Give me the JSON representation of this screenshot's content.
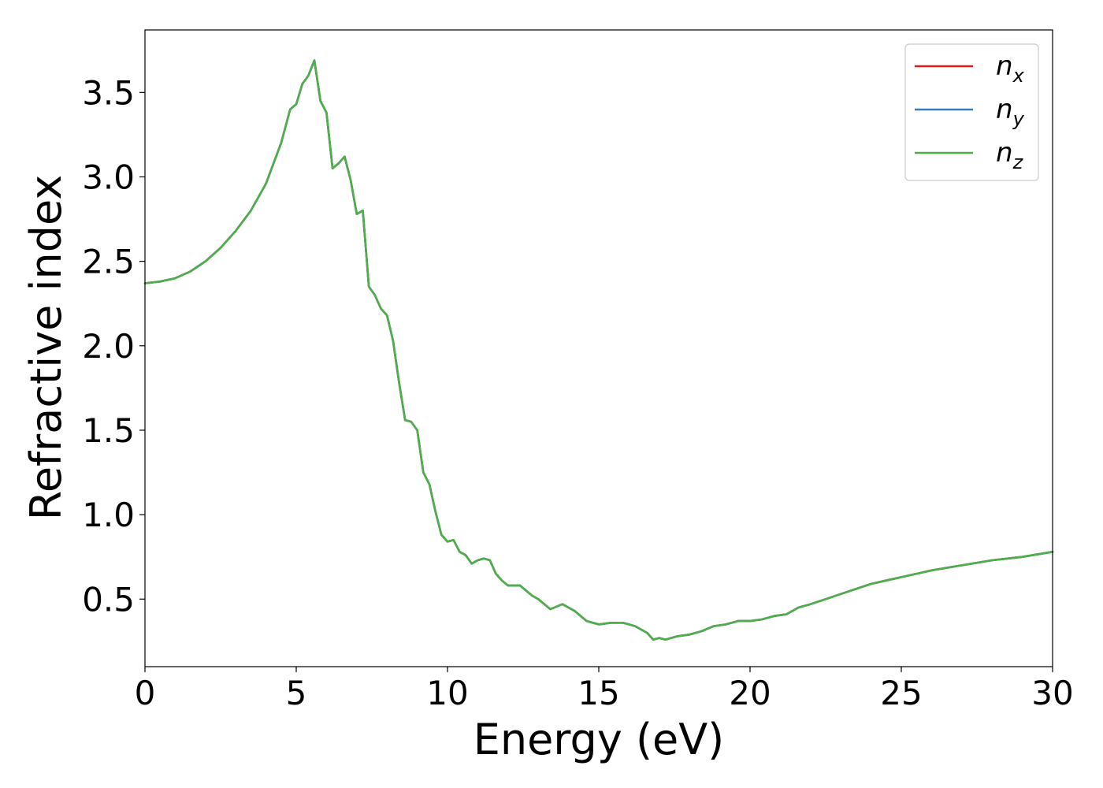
{
  "chart_data": {
    "type": "line",
    "xlabel": "Energy (eV)",
    "ylabel": "Refractive index",
    "xlim": [
      0,
      30
    ],
    "ylim": [
      0.1,
      3.87
    ],
    "x_ticks": [
      "0",
      "5",
      "10",
      "15",
      "20",
      "25",
      "30"
    ],
    "y_ticks": [
      "0.5",
      "1.0",
      "1.5",
      "2.0",
      "2.5",
      "3.0",
      "3.5"
    ],
    "grid": false,
    "legend_position": "top-right",
    "x": [
      0,
      0.5,
      1.0,
      1.5,
      2.0,
      2.5,
      3.0,
      3.5,
      4.0,
      4.5,
      4.8,
      5.0,
      5.2,
      5.4,
      5.6,
      5.8,
      6.0,
      6.2,
      6.4,
      6.6,
      6.8,
      7.0,
      7.2,
      7.4,
      7.6,
      7.8,
      8.0,
      8.2,
      8.4,
      8.6,
      8.8,
      9.0,
      9.2,
      9.4,
      9.6,
      9.8,
      10.0,
      10.2,
      10.4,
      10.6,
      10.8,
      11.0,
      11.2,
      11.4,
      11.6,
      11.8,
      12.0,
      12.4,
      12.8,
      13.0,
      13.4,
      13.8,
      14.2,
      14.6,
      15.0,
      15.4,
      15.8,
      16.2,
      16.6,
      16.8,
      17.0,
      17.2,
      17.6,
      18.0,
      18.4,
      18.8,
      19.2,
      19.6,
      20.0,
      20.4,
      20.8,
      21.2,
      21.6,
      22.0,
      22.5,
      23.0,
      23.5,
      24.0,
      24.5,
      25.0,
      25.5,
      26.0,
      27.0,
      28.0,
      29.0,
      30.0
    ],
    "series": [
      {
        "name": "n",
        "subscript": "x",
        "color": "#e41a1c",
        "y": [
          2.37,
          2.38,
          2.4,
          2.44,
          2.5,
          2.58,
          2.68,
          2.8,
          2.96,
          3.2,
          3.4,
          3.43,
          3.55,
          3.6,
          3.69,
          3.45,
          3.38,
          3.05,
          3.08,
          3.12,
          2.98,
          2.78,
          2.8,
          2.35,
          2.3,
          2.22,
          2.18,
          2.03,
          1.78,
          1.56,
          1.55,
          1.5,
          1.25,
          1.18,
          1.02,
          0.88,
          0.84,
          0.85,
          0.78,
          0.76,
          0.71,
          0.73,
          0.74,
          0.73,
          0.65,
          0.61,
          0.58,
          0.58,
          0.52,
          0.5,
          0.44,
          0.47,
          0.43,
          0.37,
          0.35,
          0.36,
          0.36,
          0.34,
          0.3,
          0.26,
          0.27,
          0.26,
          0.28,
          0.29,
          0.31,
          0.34,
          0.35,
          0.37,
          0.37,
          0.38,
          0.4,
          0.41,
          0.45,
          0.47,
          0.5,
          0.53,
          0.56,
          0.59,
          0.61,
          0.63,
          0.65,
          0.67,
          0.7,
          0.73,
          0.75,
          0.78
        ]
      },
      {
        "name": "n",
        "subscript": "y",
        "color": "#377eb8",
        "y": [
          2.37,
          2.38,
          2.4,
          2.44,
          2.5,
          2.58,
          2.68,
          2.8,
          2.96,
          3.2,
          3.4,
          3.43,
          3.55,
          3.6,
          3.69,
          3.45,
          3.38,
          3.05,
          3.08,
          3.12,
          2.98,
          2.78,
          2.8,
          2.35,
          2.3,
          2.22,
          2.18,
          2.03,
          1.78,
          1.56,
          1.55,
          1.5,
          1.25,
          1.18,
          1.02,
          0.88,
          0.84,
          0.85,
          0.78,
          0.76,
          0.71,
          0.73,
          0.74,
          0.73,
          0.65,
          0.61,
          0.58,
          0.58,
          0.52,
          0.5,
          0.44,
          0.47,
          0.43,
          0.37,
          0.35,
          0.36,
          0.36,
          0.34,
          0.3,
          0.26,
          0.27,
          0.26,
          0.28,
          0.29,
          0.31,
          0.34,
          0.35,
          0.37,
          0.37,
          0.38,
          0.4,
          0.41,
          0.45,
          0.47,
          0.5,
          0.53,
          0.56,
          0.59,
          0.61,
          0.63,
          0.65,
          0.67,
          0.7,
          0.73,
          0.75,
          0.78
        ]
      },
      {
        "name": "n",
        "subscript": "z",
        "color": "#4daf4a",
        "y": [
          2.37,
          2.38,
          2.4,
          2.44,
          2.5,
          2.58,
          2.68,
          2.8,
          2.96,
          3.2,
          3.4,
          3.43,
          3.55,
          3.6,
          3.69,
          3.45,
          3.38,
          3.05,
          3.08,
          3.12,
          2.98,
          2.78,
          2.8,
          2.35,
          2.3,
          2.22,
          2.18,
          2.03,
          1.78,
          1.56,
          1.55,
          1.5,
          1.25,
          1.18,
          1.02,
          0.88,
          0.84,
          0.85,
          0.78,
          0.76,
          0.71,
          0.73,
          0.74,
          0.73,
          0.65,
          0.61,
          0.58,
          0.58,
          0.52,
          0.5,
          0.44,
          0.47,
          0.43,
          0.37,
          0.35,
          0.36,
          0.36,
          0.34,
          0.3,
          0.26,
          0.27,
          0.26,
          0.28,
          0.29,
          0.31,
          0.34,
          0.35,
          0.37,
          0.37,
          0.38,
          0.4,
          0.41,
          0.45,
          0.47,
          0.5,
          0.53,
          0.56,
          0.59,
          0.61,
          0.63,
          0.65,
          0.67,
          0.7,
          0.73,
          0.75,
          0.78
        ]
      }
    ]
  }
}
